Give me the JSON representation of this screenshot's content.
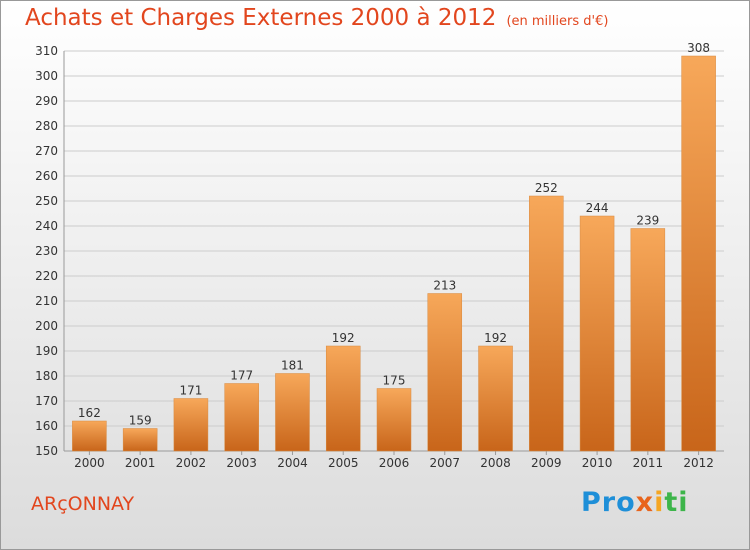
{
  "title": "Achats et Charges Externes 2000 à 2012",
  "unit": "(en milliers d'€)",
  "commune": "ARçONNAY",
  "brand": {
    "p1": "Pro",
    "p2": "x",
    "p3": "i",
    "p4": "ti"
  },
  "colors": {
    "title": "#e2461e",
    "bar_top": "#f7a85a",
    "bar_bottom": "#c8651a",
    "grid": "#cccccc"
  },
  "chart_data": {
    "type": "bar",
    "categories": [
      "2000",
      "2001",
      "2002",
      "2003",
      "2004",
      "2005",
      "2006",
      "2007",
      "2008",
      "2009",
      "2010",
      "2011",
      "2012"
    ],
    "values": [
      162,
      159,
      171,
      177,
      181,
      192,
      175,
      213,
      192,
      252,
      244,
      239,
      308
    ],
    "ylim": [
      150,
      310
    ],
    "yticks": [
      150,
      160,
      170,
      180,
      190,
      200,
      210,
      220,
      230,
      240,
      250,
      260,
      270,
      280,
      290,
      300,
      310
    ],
    "grid": true
  }
}
